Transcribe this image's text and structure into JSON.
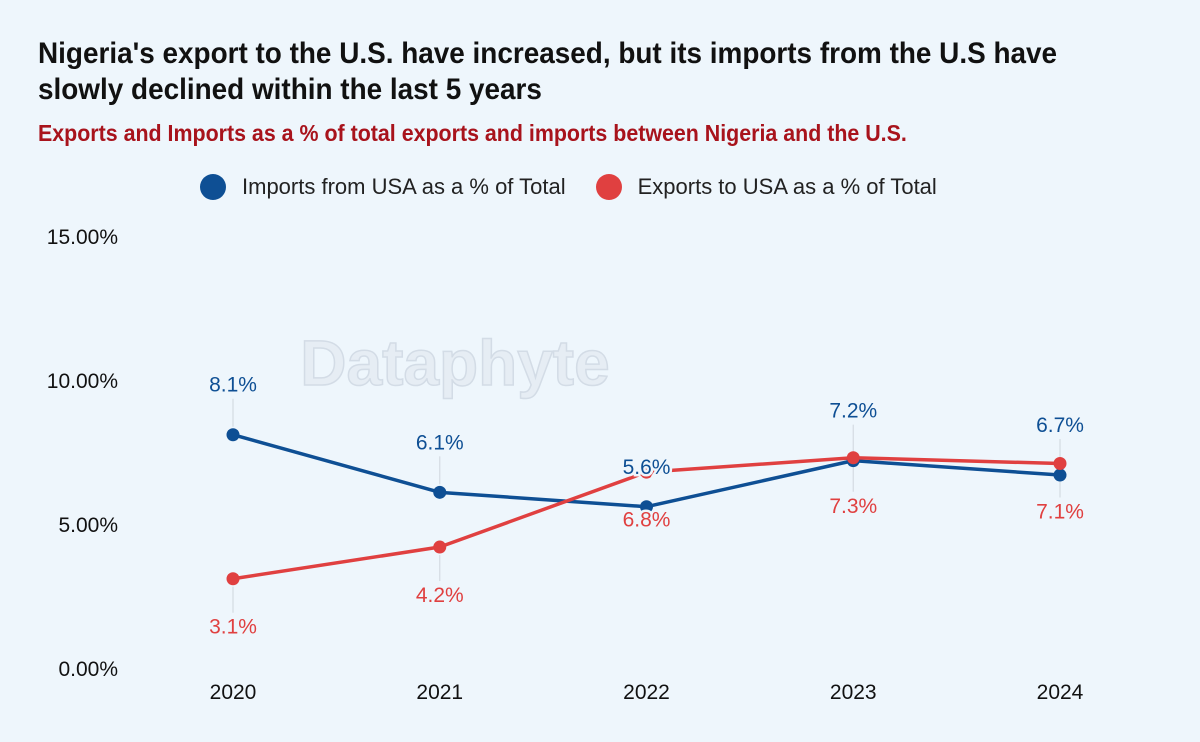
{
  "header": {
    "title": "Nigeria's export to the U.S. have increased, but its imports from the U.S have slowly declined within the last 5 years",
    "subtitle": "Exports and Imports as a % of total exports and imports between Nigeria and the U.S."
  },
  "watermark": "Dataphyte",
  "colors": {
    "imports": "#0e4f94",
    "exports": "#e04040",
    "background": "#eef6fc"
  },
  "chart_data": {
    "type": "line",
    "title": "Nigeria's export to the U.S. have increased, but its imports from the U.S have slowly declined within the last 5 years",
    "subtitle": "Exports and Imports as a % of total exports and imports between Nigeria and the U.S.",
    "x": [
      "2020",
      "2021",
      "2022",
      "2023",
      "2024"
    ],
    "ylim": [
      0,
      15
    ],
    "yticks": [
      "0.00%",
      "5.00%",
      "10.00%",
      "15.00%"
    ],
    "ytick_values": [
      0,
      5,
      10,
      15
    ],
    "grid": false,
    "legend_position": "top",
    "series": [
      {
        "name": "Imports from USA as a % of Total",
        "values": [
          8.1,
          6.1,
          5.6,
          7.2,
          6.7
        ],
        "labels": [
          "8.1%",
          "6.1%",
          "5.6%",
          "7.2%",
          "6.7%"
        ],
        "color": "#0e4f94"
      },
      {
        "name": "Exports to USA as a % of Total",
        "values": [
          3.1,
          4.2,
          6.8,
          7.3,
          7.1
        ],
        "labels": [
          "3.1%",
          "4.2%",
          "6.8%",
          "7.3%",
          "7.1%"
        ],
        "color": "#e04040"
      }
    ]
  }
}
